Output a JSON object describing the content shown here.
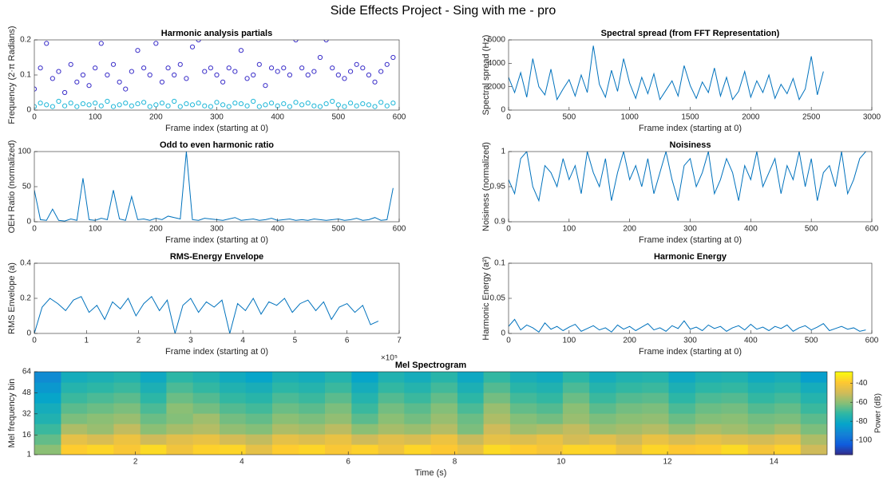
{
  "title": "Side Effects Project - Sing with me - pro",
  "chart_data": [
    {
      "type": "scatter",
      "title": "Harmonic analysis partials",
      "xlabel": "Frame index (starting at 0)",
      "ylabel": "Frequency (2·π Radians)",
      "xlim": [
        0,
        600
      ],
      "xticks": [
        0,
        100,
        200,
        300,
        400,
        500,
        600
      ],
      "ylim": [
        0,
        0.2
      ],
      "yticks": [
        0,
        0.1,
        0.2
      ],
      "x": [
        0,
        10,
        20,
        30,
        40,
        50,
        60,
        70,
        80,
        90,
        100,
        110,
        120,
        130,
        140,
        150,
        160,
        170,
        180,
        190,
        200,
        210,
        220,
        230,
        240,
        250,
        260,
        270,
        280,
        290,
        300,
        310,
        320,
        330,
        340,
        350,
        360,
        370,
        380,
        390,
        400,
        410,
        420,
        430,
        440,
        450,
        460,
        470,
        480,
        490,
        500,
        510,
        520,
        530,
        540,
        550,
        560,
        570,
        580,
        590
      ],
      "series": [
        {
          "color": "#3b2fc9",
          "values": [
            0.06,
            0.12,
            0.19,
            0.09,
            0.11,
            0.05,
            0.13,
            0.08,
            0.1,
            0.07,
            0.12,
            0.19,
            0.1,
            0.13,
            0.08,
            0.06,
            0.11,
            0.17,
            0.12,
            0.1,
            0.19,
            0.08,
            0.12,
            0.1,
            0.13,
            0.09,
            0.18,
            0.2,
            0.11,
            0.12,
            0.1,
            0.08,
            0.12,
            0.11,
            0.17,
            0.09,
            0.1,
            0.13,
            0.07,
            0.12,
            0.11,
            0.12,
            0.1,
            0.2,
            0.12,
            0.1,
            0.11,
            0.15,
            0.2,
            0.12,
            0.1,
            0.09,
            0.11,
            0.13,
            0.12,
            0.1,
            0.08,
            0.11,
            0.13,
            0.15
          ]
        },
        {
          "color": "#1fb7d8",
          "values": [
            0.01,
            0.02,
            0.015,
            0.01,
            0.025,
            0.012,
            0.02,
            0.01,
            0.018,
            0.015,
            0.02,
            0.012,
            0.025,
            0.01,
            0.015,
            0.02,
            0.012,
            0.018,
            0.022,
            0.01,
            0.015,
            0.02,
            0.012,
            0.025,
            0.01,
            0.018,
            0.015,
            0.02,
            0.012,
            0.01,
            0.022,
            0.015,
            0.01,
            0.02,
            0.018,
            0.012,
            0.025,
            0.01,
            0.015,
            0.02,
            0.012,
            0.018,
            0.01,
            0.022,
            0.015,
            0.02,
            0.012,
            0.01,
            0.018,
            0.025,
            0.015,
            0.01,
            0.02,
            0.012,
            0.018,
            0.015,
            0.01,
            0.022,
            0.012,
            0.02
          ]
        }
      ]
    },
    {
      "type": "line",
      "title": "Spectral spread (from FFT Representation)",
      "xlabel": "Frame index (starting at 0)",
      "ylabel": "Spectral spread (Hz)",
      "xlim": [
        0,
        3000
      ],
      "xticks": [
        0,
        500,
        1000,
        1500,
        2000,
        2500,
        3000
      ],
      "ylim": [
        0,
        6000
      ],
      "yticks": [
        0,
        2000,
        4000,
        6000
      ],
      "color": "#0072bd",
      "x": [
        0,
        50,
        100,
        150,
        200,
        250,
        300,
        350,
        400,
        450,
        500,
        550,
        600,
        650,
        700,
        750,
        800,
        850,
        900,
        950,
        1000,
        1050,
        1100,
        1150,
        1200,
        1250,
        1300,
        1350,
        1400,
        1450,
        1500,
        1550,
        1600,
        1650,
        1700,
        1750,
        1800,
        1850,
        1900,
        1950,
        2000,
        2050,
        2100,
        2150,
        2200,
        2250,
        2300,
        2350,
        2400,
        2450,
        2500,
        2550,
        2600
      ],
      "values": [
        2800,
        1500,
        3200,
        1100,
        4400,
        2000,
        1300,
        3500,
        900,
        1800,
        2600,
        1200,
        3000,
        1500,
        5500,
        2200,
        1100,
        3400,
        1600,
        4400,
        2300,
        1000,
        2800,
        1400,
        3100,
        900,
        1700,
        2500,
        1200,
        3800,
        2100,
        1000,
        2400,
        1500,
        3600,
        1200,
        2800,
        900,
        1600,
        3300,
        1100,
        2500,
        1500,
        3000,
        1000,
        2200,
        1400,
        2700,
        900,
        1800,
        4600,
        1300,
        3300
      ]
    },
    {
      "type": "line",
      "title": "Odd to even harmonic ratio",
      "xlabel": "Frame index (starting at 0)",
      "ylabel": "OEH Ratio (normalized)",
      "xlim": [
        0,
        600
      ],
      "xticks": [
        0,
        100,
        200,
        300,
        400,
        500,
        600
      ],
      "ylim": [
        0,
        100
      ],
      "yticks": [
        0,
        50,
        100
      ],
      "color": "#0072bd",
      "x": [
        0,
        10,
        20,
        30,
        40,
        50,
        60,
        70,
        80,
        90,
        100,
        110,
        120,
        130,
        140,
        150,
        160,
        170,
        180,
        190,
        200,
        210,
        220,
        230,
        240,
        250,
        260,
        270,
        280,
        290,
        300,
        310,
        320,
        330,
        340,
        350,
        360,
        370,
        380,
        390,
        400,
        410,
        420,
        430,
        440,
        450,
        460,
        470,
        480,
        490,
        500,
        510,
        520,
        530,
        540,
        550,
        560,
        570,
        580,
        590
      ],
      "values": [
        45,
        3,
        2,
        18,
        2,
        1,
        4,
        2,
        62,
        3,
        2,
        5,
        3,
        45,
        4,
        2,
        36,
        3,
        4,
        2,
        5,
        3,
        8,
        6,
        4,
        100,
        3,
        2,
        5,
        4,
        3,
        2,
        4,
        6,
        2,
        3,
        4,
        2,
        3,
        5,
        2,
        3,
        4,
        2,
        3,
        2,
        4,
        3,
        2,
        3,
        4,
        2,
        3,
        5,
        2,
        3,
        6,
        2,
        3,
        48
      ]
    },
    {
      "type": "line",
      "title": "Noisiness",
      "xlabel": "Frame index (starting at 0)",
      "ylabel": "Noisiness (normalized)",
      "xlim": [
        0,
        600
      ],
      "xticks": [
        0,
        100,
        200,
        300,
        400,
        500,
        600
      ],
      "ylim": [
        0.9,
        1
      ],
      "yticks": [
        0.9,
        0.95,
        1
      ],
      "color": "#0072bd",
      "x": [
        0,
        10,
        20,
        30,
        40,
        50,
        60,
        70,
        80,
        90,
        100,
        110,
        120,
        130,
        140,
        150,
        160,
        170,
        180,
        190,
        200,
        210,
        220,
        230,
        240,
        250,
        260,
        270,
        280,
        290,
        300,
        310,
        320,
        330,
        340,
        350,
        360,
        370,
        380,
        390,
        400,
        410,
        420,
        430,
        440,
        450,
        460,
        470,
        480,
        490,
        500,
        510,
        520,
        530,
        540,
        550,
        560,
        570,
        580,
        590
      ],
      "values": [
        0.96,
        0.94,
        0.99,
        1,
        0.95,
        0.93,
        0.98,
        0.97,
        0.95,
        0.99,
        0.96,
        0.98,
        0.94,
        1,
        0.97,
        0.95,
        0.99,
        0.93,
        0.97,
        1,
        0.96,
        0.98,
        0.95,
        0.99,
        0.94,
        0.97,
        1,
        0.96,
        0.93,
        0.98,
        0.99,
        0.95,
        0.97,
        1,
        0.94,
        0.96,
        0.99,
        0.97,
        0.93,
        0.98,
        0.96,
        1,
        0.95,
        0.97,
        0.99,
        0.94,
        0.98,
        0.96,
        1,
        0.95,
        0.99,
        0.93,
        0.97,
        0.98,
        0.95,
        1,
        0.94,
        0.96,
        0.99,
        1
      ]
    },
    {
      "type": "line",
      "title": "RMS-Energy Envelope",
      "xlabel": "Frame index (starting at 0)",
      "ylabel": "RMS Envelope (a)",
      "x_multiplier": "×10⁵",
      "xlim": [
        0,
        700000
      ],
      "xticks": [
        {
          "value": 0,
          "label": "0"
        },
        {
          "value": 100000,
          "label": "1"
        },
        {
          "value": 200000,
          "label": "2"
        },
        {
          "value": 300000,
          "label": "3"
        },
        {
          "value": 400000,
          "label": "4"
        },
        {
          "value": 500000,
          "label": "5"
        },
        {
          "value": 600000,
          "label": "6"
        },
        {
          "value": 700000,
          "label": "7"
        }
      ],
      "ylim": [
        0,
        0.4
      ],
      "yticks": [
        0,
        0.2,
        0.4
      ],
      "color": "#0072bd",
      "x": [
        0,
        15000,
        30000,
        45000,
        60000,
        75000,
        90000,
        105000,
        120000,
        135000,
        150000,
        165000,
        180000,
        195000,
        210000,
        225000,
        240000,
        255000,
        270000,
        285000,
        300000,
        315000,
        330000,
        345000,
        360000,
        375000,
        390000,
        405000,
        420000,
        435000,
        450000,
        465000,
        480000,
        495000,
        510000,
        525000,
        540000,
        555000,
        570000,
        585000,
        600000,
        615000,
        630000,
        645000,
        660000
      ],
      "values": [
        0,
        0.15,
        0.2,
        0.17,
        0.13,
        0.19,
        0.21,
        0.12,
        0.16,
        0.08,
        0.18,
        0.14,
        0.2,
        0.1,
        0.17,
        0.21,
        0.13,
        0.19,
        0,
        0.16,
        0.2,
        0.12,
        0.18,
        0.15,
        0.19,
        0,
        0.17,
        0.13,
        0.2,
        0.11,
        0.18,
        0.16,
        0.2,
        0.12,
        0.17,
        0.19,
        0.13,
        0.18,
        0.08,
        0.15,
        0.17,
        0.12,
        0.16,
        0.05,
        0.07
      ]
    },
    {
      "type": "line",
      "title": "Harmonic Energy",
      "xlabel": "Frame index (starting at 0)",
      "ylabel": "Harmonic Energy (a²)",
      "xlim": [
        0,
        600
      ],
      "xticks": [
        0,
        100,
        200,
        300,
        400,
        500,
        600
      ],
      "ylim": [
        0,
        0.1
      ],
      "yticks": [
        0,
        0.05,
        0.1
      ],
      "color": "#0072bd",
      "x": [
        0,
        10,
        20,
        30,
        40,
        50,
        60,
        70,
        80,
        90,
        100,
        110,
        120,
        130,
        140,
        150,
        160,
        170,
        180,
        190,
        200,
        210,
        220,
        230,
        240,
        250,
        260,
        270,
        280,
        290,
        300,
        310,
        320,
        330,
        340,
        350,
        360,
        370,
        380,
        390,
        400,
        410,
        420,
        430,
        440,
        450,
        460,
        470,
        480,
        490,
        500,
        510,
        520,
        530,
        540,
        550,
        560,
        570,
        580,
        590
      ],
      "values": [
        0.01,
        0.02,
        0.005,
        0.012,
        0.008,
        0.002,
        0.015,
        0.006,
        0.01,
        0.004,
        0.009,
        0.013,
        0.003,
        0.007,
        0.011,
        0.005,
        0.008,
        0.002,
        0.012,
        0.006,
        0.01,
        0.004,
        0.009,
        0.014,
        0.005,
        0.008,
        0.003,
        0.011,
        0.007,
        0.018,
        0.006,
        0.009,
        0.004,
        0.012,
        0.007,
        0.01,
        0.003,
        0.008,
        0.011,
        0.005,
        0.013,
        0.006,
        0.009,
        0.004,
        0.01,
        0.007,
        0.012,
        0.003,
        0.008,
        0.011,
        0.005,
        0.009,
        0.014,
        0.004,
        0.007,
        0.01,
        0.006,
        0.008,
        0.003,
        0.005
      ]
    },
    {
      "type": "heatmap",
      "title": "Mel Spectrogram",
      "xlabel": "Time (s)",
      "ylabel": "Mel frequency bin",
      "colorbar_label": "Power (dB)",
      "xlim": [
        0.1,
        15
      ],
      "xticks": [
        2,
        4,
        6,
        8,
        10,
        12,
        14
      ],
      "ylim": [
        1,
        64
      ],
      "yticks": [
        1,
        16,
        32,
        48,
        64
      ],
      "clim": [
        -115,
        -28
      ],
      "cticks": [
        -100,
        -80,
        -60,
        -40
      ],
      "colormap": [
        "#352a87",
        "#0f5cdd",
        "#1481d6",
        "#06a4ca",
        "#2eb7a4",
        "#87bf77",
        "#d1bb59",
        "#fec832",
        "#f9fb0e"
      ],
      "x": [
        0.35,
        0.85,
        1.34,
        1.84,
        2.34,
        2.83,
        3.33,
        3.83,
        4.32,
        4.82,
        5.32,
        5.81,
        6.31,
        6.81,
        7.3,
        7.8,
        8.3,
        8.79,
        9.29,
        9.79,
        10.28,
        10.78,
        11.28,
        11.77,
        12.27,
        12.77,
        13.26,
        13.76,
        14.26,
        14.75
      ],
      "y": [
        4.94,
        12.81,
        20.69,
        28.56,
        36.44,
        44.31,
        52.19,
        60.06
      ],
      "z": [
        [
          -60,
          -38,
          -36,
          -40,
          -35,
          -42,
          -37,
          -36,
          -45,
          -38,
          -36,
          -40,
          -37,
          -42,
          -36,
          -39,
          -44,
          -35,
          -38,
          -41,
          -36,
          -37,
          -43,
          -36,
          -39,
          -38,
          -35,
          -41,
          -37,
          -50
        ],
        [
          -65,
          -45,
          -48,
          -43,
          -50,
          -46,
          -44,
          -49,
          -52,
          -45,
          -47,
          -44,
          -50,
          -46,
          -48,
          -43,
          -51,
          -45,
          -47,
          -44,
          -49,
          -46,
          -50,
          -44,
          -48,
          -45,
          -47,
          -49,
          -46,
          -55
        ],
        [
          -70,
          -55,
          -58,
          -52,
          -60,
          -56,
          -54,
          -59,
          -61,
          -55,
          -57,
          -53,
          -60,
          -56,
          -58,
          -54,
          -62,
          -50,
          -57,
          -55,
          -52,
          -58,
          -56,
          -54,
          -59,
          -55,
          -57,
          -60,
          -56,
          -62
        ],
        [
          -75,
          -62,
          -60,
          -58,
          -64,
          -61,
          -57,
          -63,
          -65,
          -60,
          -62,
          -59,
          -66,
          -60,
          -63,
          -58,
          -64,
          -55,
          -61,
          -63,
          -58,
          -62,
          -60,
          -59,
          -64,
          -61,
          -60,
          -63,
          -62,
          -66
        ],
        [
          -78,
          -66,
          -64,
          -62,
          -68,
          -60,
          -63,
          -67,
          -69,
          -64,
          -66,
          -62,
          -70,
          -63,
          -66,
          -61,
          -68,
          -58,
          -65,
          -67,
          -60,
          -66,
          -63,
          -62,
          -68,
          -64,
          -63,
          -67,
          -65,
          -70
        ],
        [
          -82,
          -70,
          -68,
          -66,
          -72,
          -64,
          -67,
          -71,
          -73,
          -68,
          -70,
          -66,
          -74,
          -67,
          -70,
          -65,
          -72,
          -63,
          -69,
          -71,
          -64,
          -70,
          -67,
          -66,
          -72,
          -68,
          -67,
          -71,
          -69,
          -74
        ],
        [
          -86,
          -74,
          -72,
          -70,
          -76,
          -68,
          -71,
          -75,
          -77,
          -72,
          -74,
          -70,
          -78,
          -71,
          -74,
          -69,
          -76,
          -67,
          -73,
          -75,
          -68,
          -74,
          -71,
          -70,
          -76,
          -72,
          -71,
          -75,
          -73,
          -78
        ],
        [
          -90,
          -78,
          -76,
          -74,
          -80,
          -72,
          -75,
          -79,
          -82,
          -76,
          -78,
          -74,
          -82,
          -75,
          -78,
          -73,
          -80,
          -71,
          -77,
          -79,
          -72,
          -78,
          -75,
          -74,
          -80,
          -76,
          -75,
          -79,
          -77,
          -84
        ]
      ]
    }
  ]
}
